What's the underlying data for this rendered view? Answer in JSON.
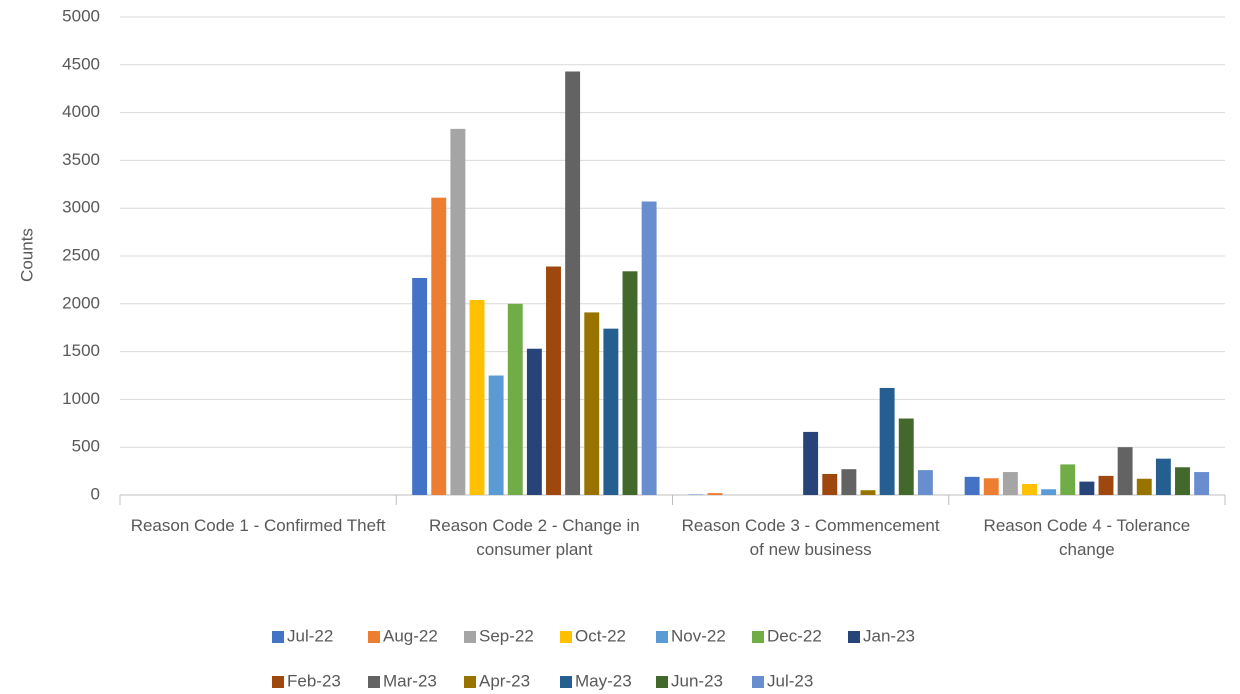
{
  "chart_data": {
    "type": "bar",
    "ylabel": "Counts",
    "categories": [
      "Reason Code 1 - Confirmed Theft",
      "Reason Code 2 - Change in consumer plant",
      "Reason Code 3 - Commencement of new business",
      "Reason Code 4 - Tolerance change"
    ],
    "series": [
      {
        "name": "Jul-22",
        "color": "#4472c4",
        "values": [
          0,
          2270,
          5,
          190
        ]
      },
      {
        "name": "Aug-22",
        "color": "#ed7d31",
        "values": [
          0,
          3110,
          20,
          175
        ]
      },
      {
        "name": "Sep-22",
        "color": "#a5a5a5",
        "values": [
          0,
          3830,
          0,
          240
        ]
      },
      {
        "name": "Oct-22",
        "color": "#ffc000",
        "values": [
          0,
          2040,
          0,
          115
        ]
      },
      {
        "name": "Nov-22",
        "color": "#5b9bd5",
        "values": [
          0,
          1250,
          0,
          60
        ]
      },
      {
        "name": "Dec-22",
        "color": "#70ad47",
        "values": [
          0,
          2000,
          0,
          320
        ]
      },
      {
        "name": "Jan-23",
        "color": "#264478",
        "values": [
          0,
          1530,
          660,
          140
        ]
      },
      {
        "name": "Feb-23",
        "color": "#9e480e",
        "values": [
          0,
          2390,
          220,
          200
        ]
      },
      {
        "name": "Mar-23",
        "color": "#636363",
        "values": [
          0,
          4430,
          270,
          500
        ]
      },
      {
        "name": "Apr-23",
        "color": "#997300",
        "values": [
          0,
          1910,
          50,
          170
        ]
      },
      {
        "name": "May-23",
        "color": "#255e91",
        "values": [
          0,
          1740,
          1120,
          380
        ]
      },
      {
        "name": "Jun-23",
        "color": "#43682b",
        "values": [
          0,
          2340,
          800,
          290
        ]
      },
      {
        "name": "Jul-23",
        "color": "#698ed0",
        "values": [
          0,
          3070,
          260,
          240
        ]
      }
    ],
    "ylim": [
      0,
      5000
    ],
    "yticks": [
      0,
      500,
      1000,
      1500,
      2000,
      2500,
      3000,
      3500,
      4000,
      4500,
      5000
    ],
    "grid": true,
    "legend": "bottom"
  }
}
